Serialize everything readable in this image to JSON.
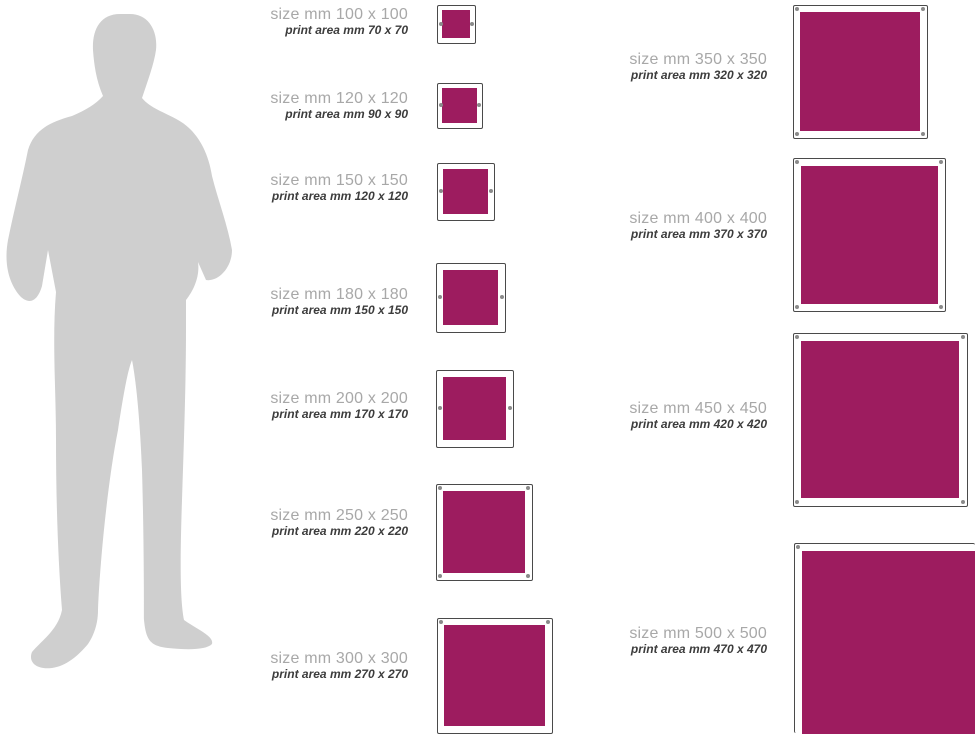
{
  "colors": {
    "print_area": "#9d1c5f",
    "frame_border": "#4a4a4a",
    "size_text": "#a8a8a8",
    "print_text": "#3c3c3c",
    "silhouette": "#cfcfcf"
  },
  "icons": {
    "person": "person-silhouette-icon",
    "screw": "screw-hole-icon"
  },
  "panels": [
    {
      "size": "size mm 100 x 100",
      "print": "print area mm 70 x 70"
    },
    {
      "size": "size mm 120 x 120",
      "print": "print area mm 90 x 90"
    },
    {
      "size": "size mm 150 x 150",
      "print": "print area mm 120 x 120"
    },
    {
      "size": "size mm 180 x 180",
      "print": "print area mm 150 x 150"
    },
    {
      "size": "size mm 200 x 200",
      "print": "print area mm 170 x 170"
    },
    {
      "size": "size mm 250 x 250",
      "print": "print area mm 220 x 220"
    },
    {
      "size": "size mm 300 x 300",
      "print": "print area mm 270 x 270"
    },
    {
      "size": "size mm 350 x 350",
      "print": "print area mm 320 x 320"
    },
    {
      "size": "size mm 400 x 400",
      "print": "print area mm 370 x 370"
    },
    {
      "size": "size mm 450 x 450",
      "print": "print area mm 420 x 420"
    },
    {
      "size": "size mm 500 x 500",
      "print": "print area  mm 470 x 470"
    }
  ]
}
